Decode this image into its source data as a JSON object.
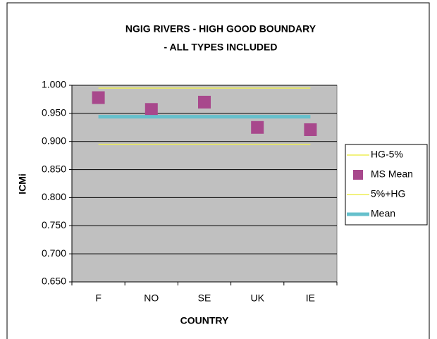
{
  "chart_data": {
    "type": "line",
    "title": [
      "NGIG RIVERS - HIGH GOOD BOUNDARY",
      "- ALL TYPES INCLUDED"
    ],
    "x_label": "COUNTRY",
    "y_label": "ICMi",
    "categories": [
      "F",
      "NO",
      "SE",
      "UK",
      "IE"
    ],
    "ylim": [
      0.65,
      1.0
    ],
    "yticks": [
      {
        "value": 0.65,
        "label": "0.650"
      },
      {
        "value": 0.7,
        "label": "0.700"
      },
      {
        "value": 0.75,
        "label": "0.750"
      },
      {
        "value": 0.8,
        "label": "0.800"
      },
      {
        "value": 0.85,
        "label": "0.850"
      },
      {
        "value": 0.9,
        "label": "0.900"
      },
      {
        "value": 0.95,
        "label": "0.950"
      },
      {
        "value": 1.0,
        "label": "1.000"
      }
    ],
    "grid": true,
    "legend": "right",
    "plot_background": "#c0c0c0",
    "series": [
      {
        "name": "HG-5%",
        "color": "#eeee55",
        "mode": "lines",
        "line_width": 1.5,
        "values": [
          0.895,
          0.895,
          0.895,
          0.895,
          0.895
        ]
      },
      {
        "name": "MS Mean",
        "color": "#a8488c",
        "mode": "markers",
        "values": [
          0.978,
          0.957,
          0.97,
          0.925,
          0.921
        ]
      },
      {
        "name": "5%+HG",
        "color": "#eeee55",
        "mode": "lines",
        "line_width": 1.5,
        "values": [
          0.995,
          0.995,
          0.995,
          0.995,
          0.995
        ]
      },
      {
        "name": "Mean",
        "color": "#66c0cc",
        "mode": "lines",
        "line_width": 5,
        "values": [
          0.944,
          0.944,
          0.944,
          0.944,
          0.944
        ]
      }
    ]
  }
}
